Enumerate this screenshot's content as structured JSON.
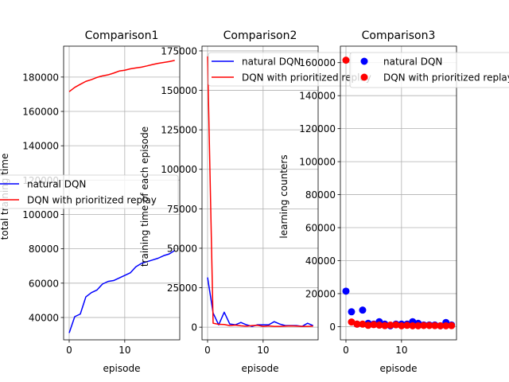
{
  "chart_data": [
    {
      "type": "line",
      "title": "Comparison1",
      "xlabel": "episode",
      "ylabel": "total training time",
      "xlim": [
        -1,
        19.9
      ],
      "ylim": [
        27000,
        198000
      ],
      "xticks": [
        0,
        10
      ],
      "xtick_labels": [
        "0",
        "10"
      ],
      "yticks": [
        40000,
        60000,
        80000,
        100000,
        120000,
        140000,
        160000,
        180000
      ],
      "ytick_labels": [
        "40000",
        "60000",
        "80000",
        "100000",
        "120000",
        "140000",
        "160000",
        "180000"
      ],
      "grid": true,
      "legend": {
        "placement": "center-left",
        "entries": [
          "natural DQN",
          "DQN with prioritized replay"
        ]
      },
      "x": [
        0,
        1,
        2,
        3,
        4,
        5,
        6,
        7,
        8,
        9,
        10,
        11,
        12,
        13,
        14,
        15,
        16,
        17,
        18,
        19
      ],
      "series": [
        {
          "name": "natural DQN",
          "color": "#0000ff",
          "marker": "none",
          "values": [
            31000,
            40500,
            42000,
            52000,
            54500,
            56000,
            59500,
            61000,
            61500,
            63000,
            64500,
            66000,
            69500,
            71500,
            72500,
            73500,
            74500,
            76000,
            77000,
            79000
          ]
        },
        {
          "name": "DQN with prioritized replay",
          "color": "#ff0000",
          "marker": "none",
          "values": [
            171500,
            174000,
            175800,
            177500,
            178500,
            179800,
            180700,
            181300,
            182300,
            183500,
            184000,
            184800,
            185300,
            185800,
            186500,
            187300,
            188000,
            188500,
            189000,
            189700
          ]
        }
      ]
    },
    {
      "type": "line",
      "title": "Comparison2",
      "xlabel": "episode",
      "ylabel": "training time of each episode",
      "xlim": [
        -1,
        19.9
      ],
      "ylim": [
        -8000,
        178000
      ],
      "xticks": [
        0,
        10
      ],
      "xtick_labels": [
        "0",
        "10"
      ],
      "yticks": [
        0,
        25000,
        50000,
        75000,
        100000,
        125000,
        150000,
        175000
      ],
      "ytick_labels": [
        "0",
        "25000",
        "50000",
        "75000",
        "100000",
        "125000",
        "150000",
        "175000"
      ],
      "grid": true,
      "legend": {
        "placement": "upper-right",
        "entries": [
          "natural DQN",
          "DQN with prioritized replay"
        ]
      },
      "x": [
        0,
        1,
        2,
        3,
        4,
        5,
        6,
        7,
        8,
        9,
        10,
        11,
        12,
        13,
        14,
        15,
        16,
        17,
        18,
        19
      ],
      "series": [
        {
          "name": "natural DQN",
          "color": "#0000ff",
          "marker": "none",
          "values": [
            31500,
            9000,
            1500,
            9500,
            2000,
            1500,
            3000,
            1500,
            500,
            1500,
            1500,
            1500,
            3500,
            2000,
            1000,
            1000,
            1000,
            500,
            2500,
            1000
          ]
        },
        {
          "name": "DQN with prioritized replay",
          "color": "#ff0000",
          "marker": "none",
          "values": [
            171500,
            2500,
            1800,
            1700,
            1000,
            1300,
            900,
            600,
            1000,
            1200,
            500,
            800,
            500,
            500,
            700,
            800,
            700,
            500,
            500,
            700
          ]
        }
      ]
    },
    {
      "type": "scatter",
      "title": "Comparison3",
      "xlabel": "episode",
      "ylabel": "learning counters",
      "xlim": [
        -1,
        19.9
      ],
      "ylim": [
        -8000,
        170000
      ],
      "xticks": [
        0,
        10
      ],
      "xtick_labels": [
        "0",
        "10"
      ],
      "yticks": [
        0,
        20000,
        40000,
        60000,
        80000,
        100000,
        120000,
        140000,
        160000
      ],
      "ytick_labels": [
        "0",
        "20000",
        "40000",
        "60000",
        "80000",
        "100000",
        "120000",
        "140000",
        "160000"
      ],
      "grid": true,
      "legend": {
        "placement": "upper-right",
        "entries": [
          "natural DQN",
          "DQN with prioritized replay"
        ]
      },
      "x": [
        0,
        1,
        2,
        3,
        4,
        5,
        6,
        7,
        8,
        9,
        10,
        11,
        12,
        13,
        14,
        15,
        16,
        17,
        18,
        19
      ],
      "series": [
        {
          "name": "natural DQN",
          "color": "#0000ff",
          "marker": "circle",
          "values": [
            21500,
            9000,
            1500,
            10000,
            2000,
            1500,
            3000,
            1500,
            500,
            1500,
            1500,
            1500,
            3000,
            2000,
            1000,
            1000,
            1000,
            500,
            2500,
            1000
          ]
        },
        {
          "name": "DQN with prioritized replay",
          "color": "#ff0000",
          "marker": "circle",
          "values": [
            161500,
            2800,
            1500,
            1500,
            800,
            1200,
            900,
            600,
            900,
            1100,
            500,
            800,
            500,
            500,
            700,
            700,
            600,
            500,
            500,
            600
          ]
        }
      ]
    }
  ]
}
